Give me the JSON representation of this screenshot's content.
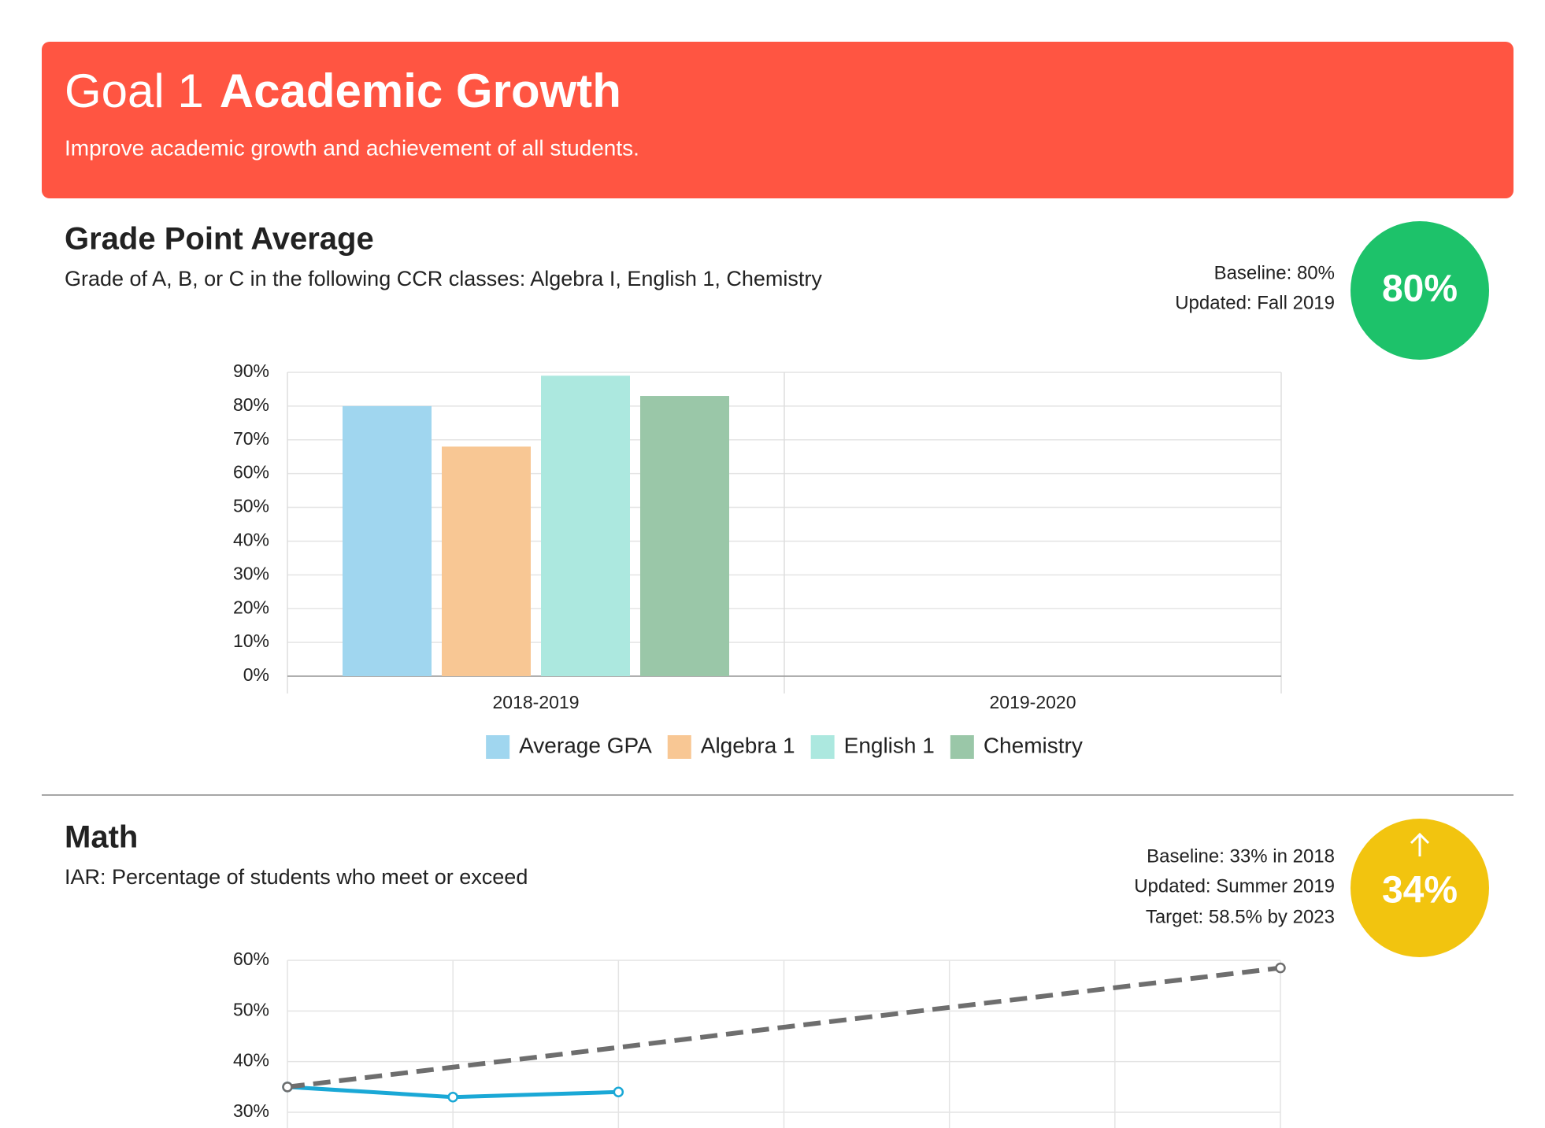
{
  "header": {
    "goal": "Goal 1",
    "title": "Academic Growth",
    "subtitle": "Improve academic growth and achievement of all students."
  },
  "chart_data": [
    {
      "type": "bar",
      "title": "Grade Point Average",
      "subtitle": "Grade of A, B, or C in the following CCR classes: Algebra I, English 1, Chemistry",
      "stats": [
        "Baseline: 80%",
        "Updated: Fall 2019"
      ],
      "badge": "80%",
      "badge_color": "#1dc26a",
      "categories": [
        "2018-2019",
        "2019-2020"
      ],
      "series": [
        {
          "name": "Average GPA",
          "color": "#a0d6ef",
          "values": [
            80,
            null
          ]
        },
        {
          "name": "Algebra 1",
          "color": "#f8c794",
          "values": [
            68,
            null
          ]
        },
        {
          "name": "English 1",
          "color": "#ace8df",
          "values": [
            89,
            null
          ]
        },
        {
          "name": "Chemistry",
          "color": "#9ac7a8",
          "values": [
            83,
            null
          ]
        }
      ],
      "ylim": [
        0,
        90
      ],
      "yticks": [
        {
          "value": 0,
          "label": "0%"
        },
        {
          "value": 10,
          "label": "10%"
        },
        {
          "value": 20,
          "label": "20%"
        },
        {
          "value": 30,
          "label": "30%"
        },
        {
          "value": 40,
          "label": "40%"
        },
        {
          "value": 50,
          "label": "50%"
        },
        {
          "value": 60,
          "label": "60%"
        },
        {
          "value": 70,
          "label": "70%"
        },
        {
          "value": 80,
          "label": "80%"
        },
        {
          "value": 90,
          "label": "90%"
        }
      ],
      "grid": true,
      "legend": "bottom"
    },
    {
      "type": "line",
      "title": "Math",
      "subtitle": "IAR: Percentage of students who meet or exceed",
      "stats": [
        "Baseline: 33% in 2018",
        "Updated: Summer 2019",
        "Target: 58.5% by 2023"
      ],
      "badge": "34%",
      "badge_color": "#f2c40f",
      "categories": [
        null,
        null,
        null,
        null,
        null,
        null,
        null
      ],
      "series": [
        {
          "color": "#1aa8d6",
          "values": [
            35,
            33,
            34,
            null,
            null,
            null,
            null
          ]
        },
        {
          "color": "#6e6e6e",
          "dashed": true,
          "values": [
            35,
            38.9,
            42.8,
            46.8,
            50.7,
            54.6,
            58.5
          ]
        }
      ],
      "ylim": [
        30,
        60
      ],
      "yticks": [
        {
          "value": 30,
          "label": "30%"
        },
        {
          "value": 40,
          "label": "40%"
        },
        {
          "value": 50,
          "label": "50%"
        },
        {
          "value": 60,
          "label": "60%"
        }
      ],
      "grid": true
    }
  ]
}
